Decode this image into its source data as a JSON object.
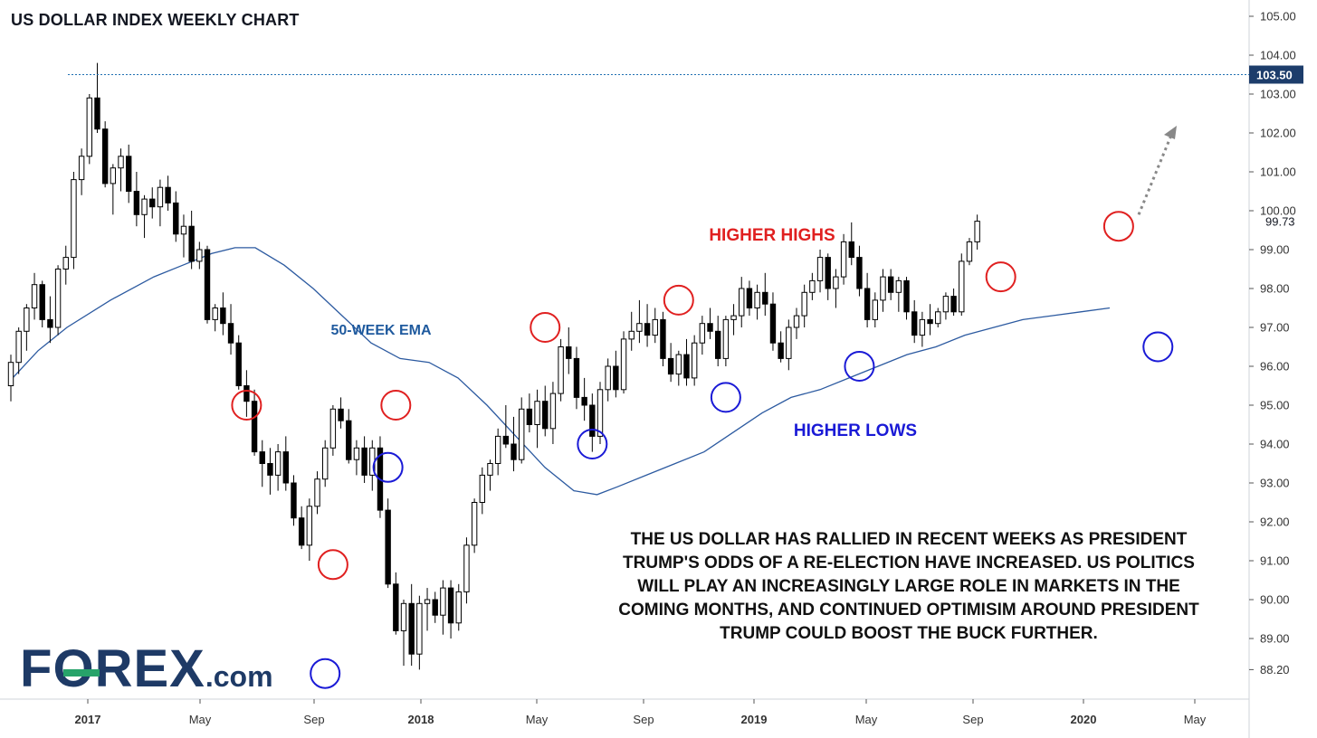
{
  "chart_data": {
    "type": "candlestick",
    "title": "US DOLLAR INDEX WEEKLY CHART",
    "y_axis": {
      "ticks": [
        "105.00",
        "104.00",
        "103.00",
        "102.00",
        "101.00",
        "100.00",
        "99.00",
        "98.00",
        "97.00",
        "96.00",
        "95.00",
        "94.00",
        "93.00",
        "92.00",
        "91.00",
        "90.00",
        "89.00",
        "88.20"
      ],
      "range": [
        88.0,
        105.4
      ]
    },
    "x_axis": {
      "ticks": [
        {
          "label": "2017",
          "year": true
        },
        {
          "label": "May",
          "year": false
        },
        {
          "label": "Sep",
          "year": false
        },
        {
          "label": "2018",
          "year": true
        },
        {
          "label": "May",
          "year": false
        },
        {
          "label": "Sep",
          "year": false
        },
        {
          "label": "2019",
          "year": true
        },
        {
          "label": "May",
          "year": false
        },
        {
          "label": "Sep",
          "year": false
        },
        {
          "label": "2020",
          "year": true
        },
        {
          "label": "May",
          "year": false
        }
      ]
    },
    "resistance": {
      "value": 103.5,
      "label": "103.50"
    },
    "last_price": {
      "value": 99.73,
      "label": "99.73"
    },
    "ema_label": "50-WEEK EMA",
    "ema": [
      [
        0,
        95.6
      ],
      [
        10,
        96.4
      ],
      [
        20,
        97.0
      ],
      [
        35,
        97.7
      ],
      [
        50,
        98.3
      ],
      [
        60,
        98.6
      ],
      [
        70,
        98.9
      ],
      [
        78,
        99.05
      ],
      [
        85,
        99.05
      ],
      [
        95,
        98.6
      ],
      [
        105,
        98.0
      ],
      [
        115,
        97.3
      ],
      [
        125,
        96.6
      ],
      [
        135,
        96.2
      ],
      [
        145,
        96.1
      ],
      [
        155,
        95.7
      ],
      [
        165,
        95.0
      ],
      [
        175,
        94.2
      ],
      [
        185,
        93.4
      ],
      [
        195,
        92.8
      ],
      [
        203,
        92.7
      ],
      [
        210,
        92.9
      ],
      [
        220,
        93.2
      ],
      [
        230,
        93.5
      ],
      [
        240,
        93.8
      ],
      [
        250,
        94.3
      ],
      [
        260,
        94.8
      ],
      [
        270,
        95.2
      ],
      [
        280,
        95.4
      ],
      [
        290,
        95.7
      ],
      [
        300,
        96.0
      ],
      [
        310,
        96.3
      ],
      [
        320,
        96.5
      ],
      [
        330,
        96.8
      ],
      [
        340,
        97.0
      ],
      [
        350,
        97.2
      ],
      [
        360,
        97.3
      ],
      [
        370,
        97.4
      ],
      [
        380,
        97.5
      ]
    ],
    "candles": [
      [
        95.5,
        96.3,
        95.1,
        96.1
      ],
      [
        96.1,
        97.0,
        95.8,
        96.9
      ],
      [
        96.9,
        97.6,
        96.4,
        97.5
      ],
      [
        97.5,
        98.4,
        97.2,
        98.1
      ],
      [
        98.1,
        98.2,
        97.0,
        97.2
      ],
      [
        97.2,
        97.8,
        96.6,
        97.0
      ],
      [
        97.0,
        98.6,
        96.8,
        98.5
      ],
      [
        98.5,
        99.1,
        98.1,
        98.8
      ],
      [
        98.8,
        101.0,
        98.5,
        100.8
      ],
      [
        100.8,
        101.6,
        100.4,
        101.4
      ],
      [
        101.4,
        103.0,
        101.2,
        102.9
      ],
      [
        102.9,
        103.8,
        102.0,
        102.1
      ],
      [
        102.1,
        102.3,
        100.6,
        100.7
      ],
      [
        100.7,
        101.2,
        99.9,
        101.1
      ],
      [
        101.1,
        101.6,
        100.5,
        101.4
      ],
      [
        101.4,
        101.7,
        100.2,
        100.5
      ],
      [
        100.5,
        101.0,
        99.6,
        99.9
      ],
      [
        99.9,
        100.4,
        99.3,
        100.3
      ],
      [
        100.3,
        100.6,
        99.8,
        100.1
      ],
      [
        100.1,
        100.8,
        99.6,
        100.6
      ],
      [
        100.6,
        100.9,
        100.0,
        100.2
      ],
      [
        100.2,
        100.5,
        99.2,
        99.4
      ],
      [
        99.4,
        99.9,
        98.8,
        99.6
      ],
      [
        99.6,
        100.0,
        98.5,
        98.7
      ],
      [
        98.7,
        99.2,
        98.5,
        99.0
      ],
      [
        99.0,
        99.1,
        97.1,
        97.2
      ],
      [
        97.2,
        97.6,
        96.9,
        97.5
      ],
      [
        97.5,
        97.9,
        96.8,
        97.1
      ],
      [
        97.1,
        97.6,
        96.3,
        96.6
      ],
      [
        96.6,
        96.8,
        95.4,
        95.5
      ],
      [
        95.5,
        95.9,
        94.7,
        95.1
      ],
      [
        95.1,
        95.4,
        93.7,
        93.8
      ],
      [
        93.8,
        94.1,
        92.9,
        93.5
      ],
      [
        93.5,
        93.9,
        92.7,
        93.2
      ],
      [
        93.2,
        94.0,
        92.8,
        93.8
      ],
      [
        93.8,
        94.2,
        92.8,
        93.0
      ],
      [
        93.0,
        93.2,
        91.9,
        92.1
      ],
      [
        92.1,
        92.4,
        91.3,
        91.4
      ],
      [
        91.4,
        92.6,
        91.0,
        92.4
      ],
      [
        92.4,
        93.3,
        92.2,
        93.1
      ],
      [
        93.1,
        94.1,
        92.9,
        93.9
      ],
      [
        93.9,
        95.0,
        93.7,
        94.9
      ],
      [
        94.9,
        95.2,
        94.4,
        94.6
      ],
      [
        94.6,
        94.9,
        93.5,
        93.6
      ],
      [
        93.6,
        94.1,
        93.2,
        93.9
      ],
      [
        93.9,
        94.2,
        93.0,
        93.2
      ],
      [
        93.2,
        94.1,
        92.8,
        93.9
      ],
      [
        93.9,
        94.2,
        92.1,
        92.3
      ],
      [
        92.3,
        92.6,
        90.3,
        90.4
      ],
      [
        90.4,
        90.7,
        89.1,
        89.2
      ],
      [
        89.2,
        90.0,
        88.3,
        89.9
      ],
      [
        89.9,
        90.4,
        88.3,
        88.6
      ],
      [
        88.6,
        90.1,
        88.2,
        89.9
      ],
      [
        89.9,
        90.3,
        89.2,
        90.0
      ],
      [
        90.0,
        90.2,
        89.4,
        89.6
      ],
      [
        89.6,
        90.5,
        89.1,
        90.3
      ],
      [
        90.3,
        90.5,
        89.0,
        89.4
      ],
      [
        89.4,
        90.4,
        89.2,
        90.2
      ],
      [
        90.2,
        91.6,
        89.9,
        91.4
      ],
      [
        91.4,
        92.6,
        91.2,
        92.5
      ],
      [
        92.5,
        93.4,
        92.2,
        93.2
      ],
      [
        93.2,
        93.6,
        92.8,
        93.5
      ],
      [
        93.5,
        94.4,
        93.2,
        94.2
      ],
      [
        94.2,
        95.0,
        93.9,
        94.0
      ],
      [
        94.0,
        94.7,
        93.3,
        93.6
      ],
      [
        93.6,
        95.2,
        93.5,
        94.9
      ],
      [
        94.9,
        95.3,
        94.3,
        94.5
      ],
      [
        94.5,
        95.4,
        93.9,
        95.1
      ],
      [
        95.1,
        95.5,
        94.2,
        94.4
      ],
      [
        94.4,
        95.6,
        94.0,
        95.3
      ],
      [
        95.3,
        96.7,
        95.1,
        96.5
      ],
      [
        96.5,
        97.0,
        95.8,
        96.2
      ],
      [
        96.2,
        96.5,
        94.9,
        95.2
      ],
      [
        95.2,
        95.7,
        94.6,
        95.0
      ],
      [
        95.0,
        95.3,
        93.8,
        94.2
      ],
      [
        94.2,
        95.6,
        94.0,
        95.4
      ],
      [
        95.4,
        96.2,
        95.1,
        96.0
      ],
      [
        96.0,
        96.4,
        95.2,
        95.4
      ],
      [
        95.4,
        96.9,
        95.3,
        96.7
      ],
      [
        96.7,
        97.4,
        96.4,
        96.9
      ],
      [
        96.9,
        97.7,
        96.6,
        97.1
      ],
      [
        97.1,
        97.6,
        96.5,
        96.8
      ],
      [
        96.8,
        97.5,
        96.6,
        97.2
      ],
      [
        97.2,
        97.4,
        96.0,
        96.2
      ],
      [
        96.2,
        96.6,
        95.6,
        95.8
      ],
      [
        95.8,
        96.4,
        95.5,
        96.3
      ],
      [
        96.3,
        96.7,
        95.5,
        95.7
      ],
      [
        95.7,
        96.8,
        95.5,
        96.6
      ],
      [
        96.6,
        97.3,
        96.3,
        97.1
      ],
      [
        97.1,
        97.5,
        96.7,
        96.9
      ],
      [
        96.9,
        97.3,
        96.0,
        96.2
      ],
      [
        96.2,
        97.3,
        96.0,
        97.2
      ],
      [
        97.2,
        97.6,
        96.8,
        97.3
      ],
      [
        97.3,
        98.3,
        97.0,
        98.0
      ],
      [
        98.0,
        98.2,
        97.3,
        97.5
      ],
      [
        97.5,
        98.1,
        97.2,
        97.9
      ],
      [
        97.9,
        98.4,
        97.3,
        97.6
      ],
      [
        97.6,
        97.9,
        96.4,
        96.6
      ],
      [
        96.6,
        96.9,
        96.1,
        96.2
      ],
      [
        96.2,
        97.2,
        95.9,
        97.0
      ],
      [
        97.0,
        97.5,
        96.7,
        97.3
      ],
      [
        97.3,
        98.1,
        97.0,
        97.9
      ],
      [
        97.9,
        98.4,
        97.7,
        98.2
      ],
      [
        98.2,
        99.0,
        97.9,
        98.8
      ],
      [
        98.8,
        98.9,
        97.7,
        98.0
      ],
      [
        98.0,
        98.5,
        97.5,
        98.3
      ],
      [
        98.3,
        99.4,
        98.1,
        99.2
      ],
      [
        99.2,
        99.7,
        98.6,
        98.8
      ],
      [
        98.8,
        99.1,
        97.8,
        98.0
      ],
      [
        98.0,
        98.4,
        97.0,
        97.2
      ],
      [
        97.2,
        97.9,
        97.0,
        97.7
      ],
      [
        97.7,
        98.5,
        97.4,
        98.3
      ],
      [
        98.3,
        98.5,
        97.7,
        97.9
      ],
      [
        97.9,
        98.3,
        97.4,
        98.2
      ],
      [
        98.2,
        98.3,
        97.2,
        97.4
      ],
      [
        97.4,
        97.7,
        96.6,
        96.8
      ],
      [
        96.8,
        97.4,
        96.5,
        97.2
      ],
      [
        97.2,
        97.6,
        96.8,
        97.1
      ],
      [
        97.1,
        97.5,
        97.0,
        97.4
      ],
      [
        97.4,
        97.9,
        97.2,
        97.8
      ],
      [
        97.8,
        98.0,
        97.3,
        97.4
      ],
      [
        97.4,
        98.9,
        97.3,
        98.7
      ],
      [
        98.7,
        99.3,
        98.6,
        99.2
      ],
      [
        99.2,
        99.9,
        99.0,
        99.73
      ]
    ],
    "annotations": {
      "higher_highs": "HIGHER HIGHS",
      "higher_lows": "HIGHER LOWS"
    },
    "highs_circled": [
      [
        30,
        95.0
      ],
      [
        41,
        90.9
      ],
      [
        49,
        95.0
      ],
      [
        68,
        97.0
      ],
      [
        85,
        97.7
      ],
      [
        126,
        98.3
      ],
      [
        141,
        99.6
      ]
    ],
    "lows_circled": [
      [
        40,
        88.1
      ],
      [
        48,
        93.4
      ],
      [
        74,
        94.0
      ],
      [
        91,
        95.2
      ],
      [
        108,
        96.0
      ],
      [
        146,
        96.5
      ]
    ]
  },
  "note": "THE US DOLLAR HAS RALLIED IN RECENT WEEKS AS PRESIDENT TRUMP'S ODDS OF A RE-ELECTION HAVE INCREASED. US POLITICS WILL PLAY AN INCREASINGLY LARGE ROLE IN MARKETS IN THE COMING MONTHS, AND CONTINUED OPTIMISIM AROUND PRESIDENT TRUMP COULD BOOST THE BUCK FURTHER.",
  "logo": {
    "brand_prefix": "F",
    "brand_o": "O",
    "brand_suffix": "REX",
    "dotcom": ".com"
  },
  "colors": {
    "bull_fill": "#ffffff",
    "bear_fill": "#000000",
    "ema": "#2c5aa0",
    "resistance": "#1f6fb2",
    "label_bg": "#1d3d6b",
    "high_circle": "#e02020",
    "low_circle": "#1a1ad6",
    "higher_highs_text": "#e02020",
    "higher_lows_text": "#1a1ad6",
    "ema_text": "#1f5a9e"
  }
}
